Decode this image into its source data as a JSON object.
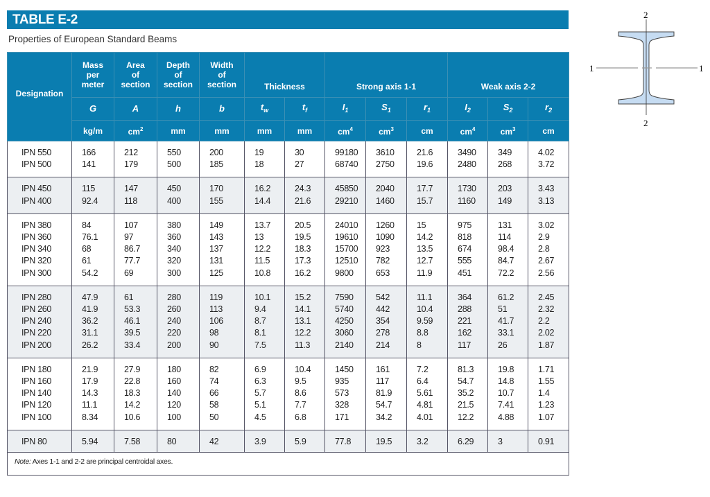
{
  "title": "TABLE E-2",
  "subtitle": "Properties of European Standard Beams",
  "header": {
    "designation": "Designation",
    "mass": [
      "Mass",
      "per",
      "meter"
    ],
    "area": [
      "Area",
      "of",
      "section"
    ],
    "depth": [
      "Depth",
      "of",
      "section"
    ],
    "width": [
      "Width",
      "of",
      "section"
    ],
    "thickness": "Thickness",
    "strong_axis": "Strong axis 1-1",
    "weak_axis": "Weak axis 2-2",
    "symbols": [
      {
        "base": "G",
        "sub": ""
      },
      {
        "base": "A",
        "sub": ""
      },
      {
        "base": "h",
        "sub": ""
      },
      {
        "base": "b",
        "sub": ""
      },
      {
        "base": "t",
        "sub": "w"
      },
      {
        "base": "t",
        "sub": "f"
      },
      {
        "base": "I",
        "sub": "1"
      },
      {
        "base": "S",
        "sub": "1"
      },
      {
        "base": "r",
        "sub": "1"
      },
      {
        "base": "I",
        "sub": "2"
      },
      {
        "base": "S",
        "sub": "2"
      },
      {
        "base": "r",
        "sub": "2"
      }
    ],
    "units": [
      {
        "base": "kg/m",
        "sup": ""
      },
      {
        "base": "cm",
        "sup": "2"
      },
      {
        "base": "mm",
        "sup": ""
      },
      {
        "base": "mm",
        "sup": ""
      },
      {
        "base": "mm",
        "sup": ""
      },
      {
        "base": "mm",
        "sup": ""
      },
      {
        "base": "cm",
        "sup": "4"
      },
      {
        "base": "cm",
        "sup": "3"
      },
      {
        "base": "cm",
        "sup": ""
      },
      {
        "base": "cm",
        "sup": "4"
      },
      {
        "base": "cm",
        "sup": "3"
      },
      {
        "base": "cm",
        "sup": ""
      }
    ]
  },
  "groups": [
    {
      "shaded": false,
      "rows": [
        [
          "IPN 550",
          "166",
          "212",
          "550",
          "200",
          "19",
          "30",
          "99180",
          "3610",
          "21.6",
          "3490",
          "349",
          "4.02"
        ],
        [
          "IPN 500",
          "141",
          "179",
          "500",
          "185",
          "18",
          "27",
          "68740",
          "2750",
          "19.6",
          "2480",
          "268",
          "3.72"
        ]
      ]
    },
    {
      "shaded": true,
      "rows": [
        [
          "IPN 450",
          "115",
          "147",
          "450",
          "170",
          "16.2",
          "24.3",
          "45850",
          "2040",
          "17.7",
          "1730",
          "203",
          "3.43"
        ],
        [
          "IPN 400",
          "92.4",
          "118",
          "400",
          "155",
          "14.4",
          "21.6",
          "29210",
          "1460",
          "15.7",
          "1160",
          "149",
          "3.13"
        ]
      ]
    },
    {
      "shaded": false,
      "rows": [
        [
          "IPN 380",
          "84",
          "107",
          "380",
          "149",
          "13.7",
          "20.5",
          "24010",
          "1260",
          "15",
          "975",
          "131",
          "3.02"
        ],
        [
          "IPN 360",
          "76.1",
          "97",
          "360",
          "143",
          "13",
          "19.5",
          "19610",
          "1090",
          "14.2",
          "818",
          "114",
          "2.9"
        ],
        [
          "IPN 340",
          "68",
          "86.7",
          "340",
          "137",
          "12.2",
          "18.3",
          "15700",
          "923",
          "13.5",
          "674",
          "98.4",
          "2.8"
        ],
        [
          "IPN 320",
          "61",
          "77.7",
          "320",
          "131",
          "11.5",
          "17.3",
          "12510",
          "782",
          "12.7",
          "555",
          "84.7",
          "2.67"
        ],
        [
          "IPN 300",
          "54.2",
          "69",
          "300",
          "125",
          "10.8",
          "16.2",
          "9800",
          "653",
          "11.9",
          "451",
          "72.2",
          "2.56"
        ]
      ]
    },
    {
      "shaded": true,
      "rows": [
        [
          "IPN 280",
          "47.9",
          "61",
          "280",
          "119",
          "10.1",
          "15.2",
          "7590",
          "542",
          "11.1",
          "364",
          "61.2",
          "2.45"
        ],
        [
          "IPN 260",
          "41.9",
          "53.3",
          "260",
          "113",
          "9.4",
          "14.1",
          "5740",
          "442",
          "10.4",
          "288",
          "51",
          "2.32"
        ],
        [
          "IPN 240",
          "36.2",
          "46.1",
          "240",
          "106",
          "8.7",
          "13.1",
          "4250",
          "354",
          "9.59",
          "221",
          "41.7",
          "2.2"
        ],
        [
          "IPN 220",
          "31.1",
          "39.5",
          "220",
          "98",
          "8.1",
          "12.2",
          "3060",
          "278",
          "8.8",
          "162",
          "33.1",
          "2.02"
        ],
        [
          "IPN 200",
          "26.2",
          "33.4",
          "200",
          "90",
          "7.5",
          "11.3",
          "2140",
          "214",
          "8",
          "117",
          "26",
          "1.87"
        ]
      ]
    },
    {
      "shaded": false,
      "rows": [
        [
          "IPN 180",
          "21.9",
          "27.9",
          "180",
          "82",
          "6.9",
          "10.4",
          "1450",
          "161",
          "7.2",
          "81.3",
          "19.8",
          "1.71"
        ],
        [
          "IPN 160",
          "17.9",
          "22.8",
          "160",
          "74",
          "6.3",
          "9.5",
          "935",
          "117",
          "6.4",
          "54.7",
          "14.8",
          "1.55"
        ],
        [
          "IPN 140",
          "14.3",
          "18.3",
          "140",
          "66",
          "5.7",
          "8.6",
          "573",
          "81.9",
          "5.61",
          "35.2",
          "10.7",
          "1.4"
        ],
        [
          "IPN 120",
          "11.1",
          "14.2",
          "120",
          "58",
          "5.1",
          "7.7",
          "328",
          "54.7",
          "4.81",
          "21.5",
          "7.41",
          "1.23"
        ],
        [
          "IPN 100",
          "8.34",
          "10.6",
          "100",
          "50",
          "4.5",
          "6.8",
          "171",
          "34.2",
          "4.01",
          "12.2",
          "4.88",
          "1.07"
        ]
      ]
    },
    {
      "shaded": true,
      "rows": [
        [
          "IPN 80",
          "5.94",
          "7.58",
          "80",
          "42",
          "3.9",
          "5.9",
          "77.8",
          "19.5",
          "3.2",
          "6.29",
          "3",
          "0.91"
        ]
      ]
    }
  ],
  "note": {
    "label": "Note:",
    "text": " Axes 1-1 and 2-2 are principal centroidal axes."
  },
  "figure": {
    "axis_labels": [
      "1",
      "1",
      "2",
      "2"
    ]
  },
  "colors": {
    "header": "#0a7db0",
    "shaded_row": "#eceff2",
    "beam_fill": "#c6dcf2"
  }
}
